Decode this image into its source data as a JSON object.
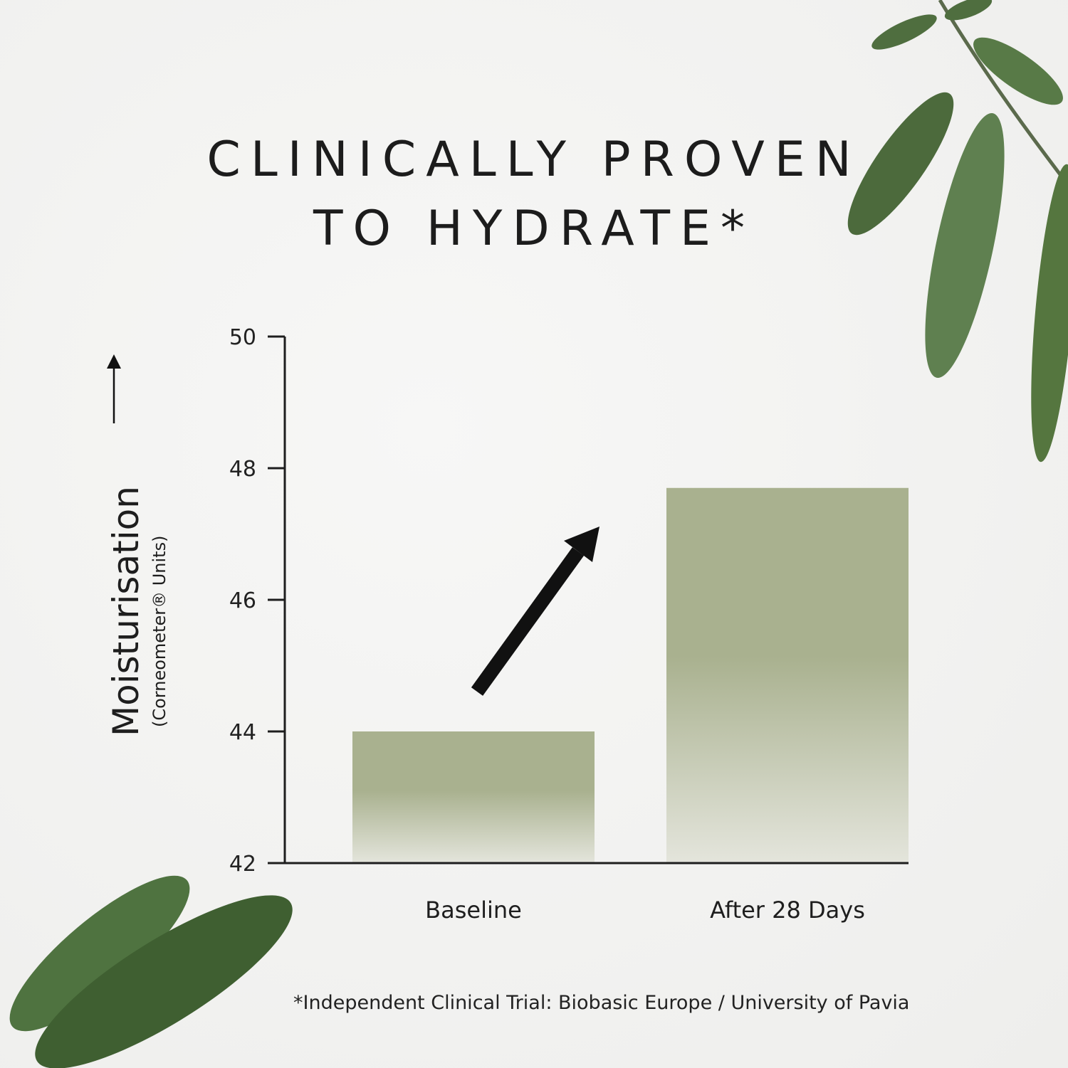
{
  "title_line1": "CLINICALLY PROVEN",
  "title_line2": "TO HYDRATE*",
  "footnote": "*Independent Clinical Trial: Biobasic Europe / University of Pavia",
  "colors": {
    "bar": "#a9b18f",
    "bar_fade": "#e4e5dc",
    "leaf": "#4a6b3a",
    "text": "#1e1e1e"
  },
  "chart_data": {
    "type": "bar",
    "categories": [
      "Baseline",
      "After 28 Days"
    ],
    "values": [
      44.0,
      47.7
    ],
    "ylabel": "Moisturisation",
    "ylabel_sub": "(Corneometer® Units)",
    "ylim": [
      42,
      50
    ],
    "yticks": [
      "42",
      "44",
      "46",
      "48",
      "50"
    ],
    "grid": false,
    "annotation": "upward-arrow"
  }
}
